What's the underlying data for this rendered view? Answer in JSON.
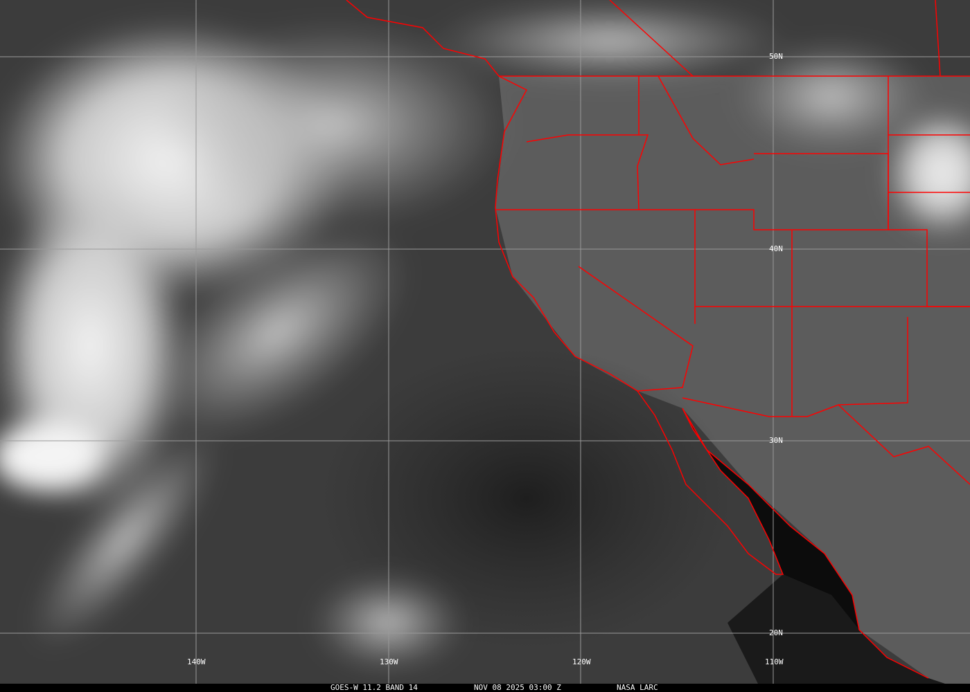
{
  "caption": {
    "satellite": "GOES-W 11.2 BAND 14",
    "datetime": "NOV 08 2025 03:00 Z",
    "source": "NASA LARC"
  },
  "grid": {
    "longitudes": [
      "140W",
      "130W",
      "120W",
      "110W"
    ],
    "latitudes": [
      "50N",
      "40N",
      "30N",
      "20N"
    ]
  },
  "colors": {
    "borders": "#ff0000",
    "grid": "#9a9a9a",
    "background": "#3a3a3a"
  }
}
